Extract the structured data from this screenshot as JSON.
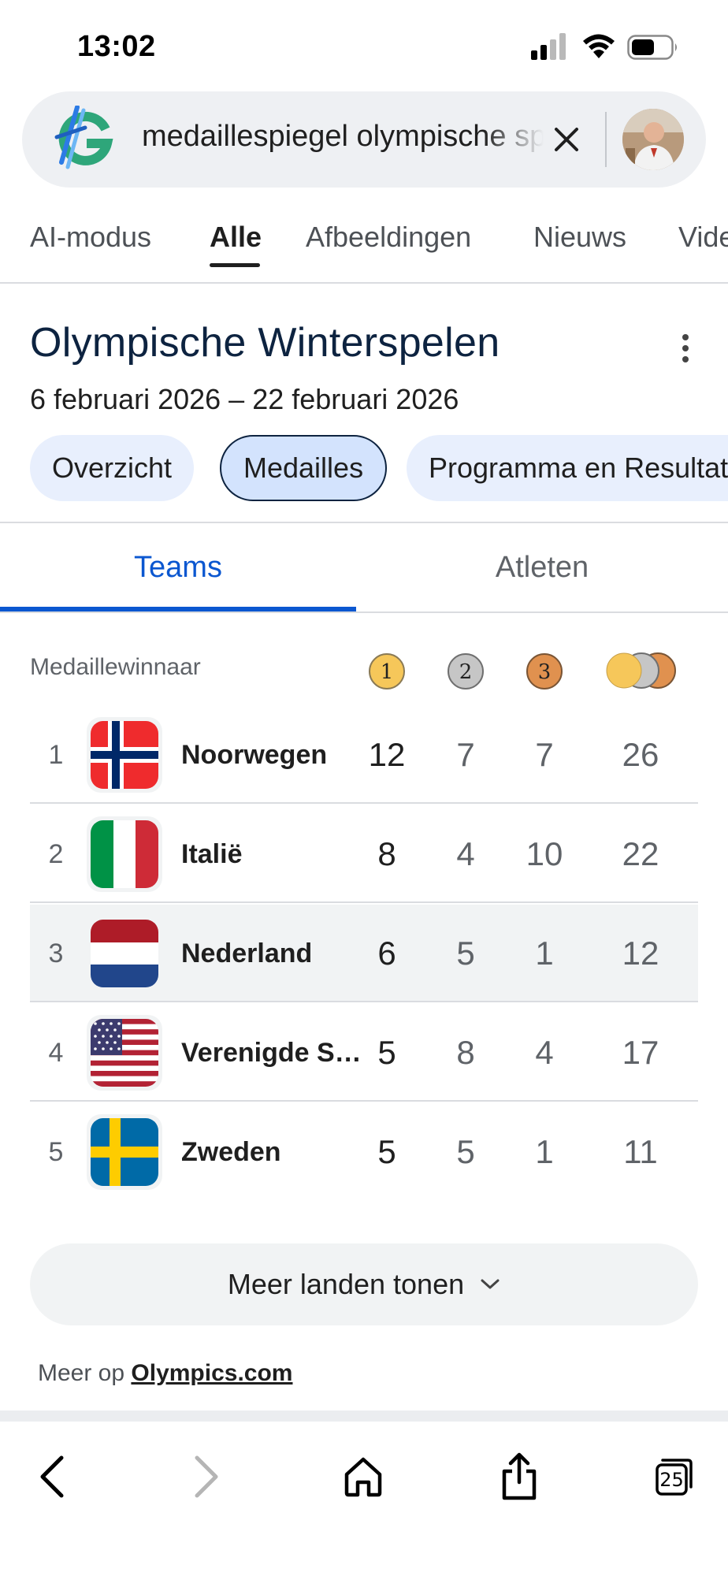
{
  "status_bar": {
    "time": "13:02"
  },
  "search": {
    "query": "medaillespiegel olympische spelen"
  },
  "search_tabs": [
    "AI-modus",
    "Alle",
    "Afbeeldingen",
    "Nieuws",
    "Video's"
  ],
  "event": {
    "title": "Olympische Winterspelen",
    "dates": "6 februari 2026 – 22 februari 2026"
  },
  "chips": [
    "Overzicht",
    "Medailles",
    "Programma en Resultaten"
  ],
  "sub_tabs": {
    "teams": "Teams",
    "athletes": "Atleten"
  },
  "table": {
    "header_label": "Medaillewinnaar",
    "medal_icons": {
      "gold": "1",
      "silver": "2",
      "bronze": "3"
    },
    "rows": [
      {
        "rank": "1",
        "country": "Noorwegen",
        "gold": "12",
        "silver": "7",
        "bronze": "7",
        "total": "26"
      },
      {
        "rank": "2",
        "country": "Italië",
        "gold": "8",
        "silver": "4",
        "bronze": "10",
        "total": "22"
      },
      {
        "rank": "3",
        "country": "Nederland",
        "gold": "6",
        "silver": "5",
        "bronze": "1",
        "total": "12"
      },
      {
        "rank": "4",
        "country": "Verenigde Staten",
        "gold": "5",
        "silver": "8",
        "bronze": "4",
        "total": "17"
      },
      {
        "rank": "5",
        "country": "Zweden",
        "gold": "5",
        "silver": "5",
        "bronze": "1",
        "total": "11"
      }
    ]
  },
  "more_button_label": "Meer landen tonen",
  "source": {
    "prefix": "Meer op",
    "link": "Olympics.com"
  },
  "browser": {
    "tab_count": "25"
  },
  "colors": {
    "accent_blue": "#0b57d0",
    "chip_bg": "#e8effd",
    "title_navy": "#0d2340",
    "gold": "#f6c75a",
    "silver": "#c6c6c6",
    "bronze": "#e0914f"
  },
  "icons": [
    "signal-icon",
    "wifi-icon",
    "battery-icon",
    "google-logo",
    "close-icon",
    "avatar",
    "more-vert-icon",
    "gold-medal-icon",
    "silver-medal-icon",
    "bronze-medal-icon",
    "total-medals-icon",
    "chevron-down-icon",
    "back-icon",
    "forward-icon",
    "home-icon",
    "share-icon",
    "tabs-icon"
  ]
}
